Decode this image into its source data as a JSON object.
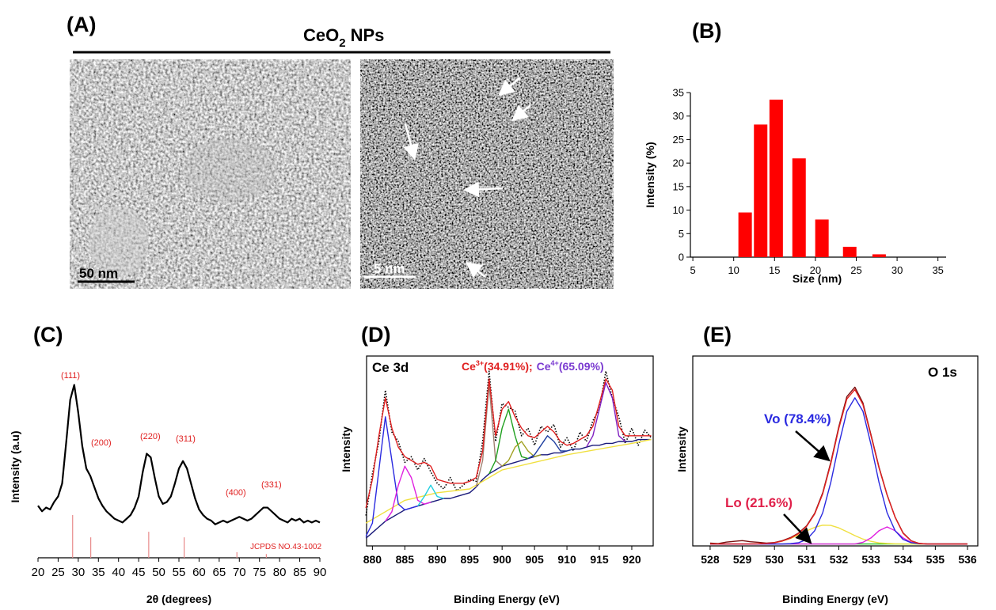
{
  "figure_a": {
    "label": "(A)",
    "title": "CeO",
    "title_subscript": "2",
    "title_suffix": "NPs",
    "scale_bar_1": "50 nm",
    "scale_bar_2": "5 nm"
  },
  "chart_data": [
    {
      "type": "bar",
      "label": "(B)",
      "xlabel": "Size (nm)",
      "ylabel": "Intensity (%)",
      "x": [
        11.4,
        13.3,
        15.2,
        18,
        20.8,
        24.2,
        27.8
      ],
      "values": [
        9.5,
        28.2,
        33.5,
        21,
        8,
        2.2,
        0.6
      ],
      "color": "#ff0000",
      "xlim": [
        4.7,
        36
      ],
      "xticks": [
        5,
        10,
        15,
        20,
        25,
        30,
        35
      ],
      "ylim": [
        0,
        35
      ],
      "yticks": [
        0,
        5,
        10,
        15,
        20,
        25,
        30,
        35
      ],
      "frame": false
    },
    {
      "type": "line",
      "label": "(C)",
      "xlabel": "2θ (degrees)",
      "ylabel": "Intensity (a.u)",
      "x": [
        20,
        21,
        22,
        23,
        24,
        25,
        26,
        27,
        28,
        29,
        30,
        31,
        32,
        33,
        34,
        35,
        36,
        37,
        38,
        39,
        40,
        41,
        42,
        43,
        44,
        45,
        46,
        47,
        48,
        49,
        50,
        51,
        52,
        53,
        54,
        55,
        56,
        57,
        58,
        59,
        60,
        61,
        62,
        63,
        64,
        65,
        66,
        67,
        68,
        69,
        70,
        71,
        72,
        73,
        74,
        75,
        76,
        77,
        78,
        79,
        80,
        81,
        82,
        83,
        84,
        85,
        86,
        87,
        88,
        89,
        90
      ],
      "series": [
        {
          "color": "#000000",
          "values": [
            28,
            25,
            27,
            26,
            30,
            33,
            40,
            62,
            85,
            93,
            78,
            60,
            48,
            44,
            38,
            32,
            28,
            25,
            23,
            21,
            20,
            19,
            21,
            23,
            27,
            33,
            46,
            56,
            54,
            43,
            33,
            29,
            30,
            33,
            40,
            48,
            52,
            48,
            40,
            32,
            26,
            23,
            21,
            20,
            18,
            19,
            20,
            19,
            20,
            21,
            22,
            21,
            20,
            21,
            23,
            25,
            27,
            27,
            25,
            23,
            21,
            20,
            19,
            21,
            20,
            21,
            19,
            20,
            19,
            20,
            19
          ]
        }
      ],
      "reference": {
        "x": [
          28.6,
          33.1,
          47.5,
          56.3,
          69.4,
          76.7
        ],
        "values": [
          23,
          11,
          14,
          11,
          3,
          2
        ],
        "color": "#e88a8a"
      },
      "peak_labels": [
        "(111)",
        "(200)",
        "(220)",
        "(311)",
        "(400)",
        "(331)"
      ],
      "reference_label": "JCPDS NO.43-1002",
      "xlim": [
        20,
        90
      ],
      "xticks": [
        20,
        25,
        30,
        35,
        40,
        45,
        50,
        55,
        60,
        65,
        70,
        75,
        80,
        85,
        90
      ],
      "ylim": [
        0,
        100
      ],
      "frame": false
    },
    {
      "type": "line",
      "label": "(D)",
      "title": "Ce 3d",
      "xlabel": "Binding Energy (eV)",
      "ylabel": "Intensity",
      "annotation": {
        "ce3_label": "Ce",
        "ce3_charge": "3+",
        "ce3_value": "(34.91%);",
        "ce4_label": "Ce",
        "ce4_charge": "4+",
        "ce4_value": "(65.09%)"
      },
      "x": [
        879,
        880,
        881,
        882,
        883,
        884,
        885,
        886,
        887,
        888,
        889,
        890,
        891,
        892,
        893,
        894,
        895,
        896,
        897,
        898,
        899,
        900,
        901,
        902,
        903,
        904,
        905,
        906,
        907,
        908,
        909,
        910,
        911,
        912,
        913,
        914,
        915,
        916,
        917,
        918,
        919,
        920,
        921,
        922,
        923
      ],
      "series": [
        {
          "color": "#000000",
          "style": "dotted",
          "values": [
            16,
            38,
            55,
            82,
            60,
            55,
            44,
            47,
            40,
            46,
            39,
            33,
            30,
            36,
            29,
            32,
            35,
            34,
            55,
            92,
            55,
            75,
            73,
            71,
            58,
            62,
            53,
            63,
            60,
            64,
            52,
            57,
            50,
            60,
            55,
            66,
            72,
            92,
            78,
            68,
            54,
            62,
            53,
            61,
            57
          ]
        },
        {
          "color": "#1a1a7a",
          "values": [
            4,
            7,
            10,
            13,
            15,
            17,
            19,
            20,
            21,
            22,
            23,
            24,
            25,
            25,
            26,
            27,
            28,
            31,
            35,
            38,
            40,
            42,
            43,
            44,
            45,
            46,
            47,
            48,
            48,
            49,
            49,
            50,
            51,
            51,
            52,
            53,
            53,
            54,
            54,
            55,
            55,
            55,
            56,
            56,
            56
          ]
        },
        {
          "color": "#f0e040",
          "x": [
            879,
            885,
            890,
            895,
            900,
            910,
            920,
            923
          ],
          "values": [
            12,
            24,
            28,
            30,
            40,
            48,
            54,
            56
          ]
        },
        {
          "color": "#2a2ae0",
          "x": [
            879,
            880,
            881,
            882,
            883,
            884,
            885,
            886,
            887
          ],
          "values": [
            5,
            12,
            40,
            68,
            45,
            22,
            19,
            20,
            21
          ]
        },
        {
          "color": "#e020e0",
          "x": [
            882,
            883,
            884,
            885,
            886,
            887,
            888,
            889
          ],
          "values": [
            13,
            18,
            32,
            42,
            36,
            24,
            22,
            23
          ]
        },
        {
          "color": "#20d0e0",
          "x": [
            887,
            888,
            889,
            890,
            891
          ],
          "values": [
            21,
            26,
            32,
            26,
            25
          ]
        },
        {
          "color": "#a08070",
          "x": [
            896,
            897,
            898,
            899,
            900
          ],
          "values": [
            31,
            45,
            85,
            45,
            42
          ]
        },
        {
          "color": "#20a020",
          "x": [
            898,
            899,
            900,
            901,
            902,
            903,
            904
          ],
          "values": [
            38,
            45,
            62,
            72,
            58,
            47,
            46
          ]
        },
        {
          "color": "#a0a020",
          "x": [
            900,
            901,
            902,
            903,
            904,
            905,
            906
          ],
          "values": [
            42,
            45,
            52,
            55,
            50,
            47,
            48
          ]
        },
        {
          "color": "#2040a0",
          "x": [
            904,
            905,
            906,
            907,
            908,
            909,
            910,
            911
          ],
          "values": [
            46,
            48,
            53,
            58,
            55,
            50,
            50,
            51
          ]
        },
        {
          "color": "#8020c0",
          "x": [
            913,
            914,
            915,
            916,
            917,
            918,
            919
          ],
          "values": [
            52,
            58,
            72,
            86,
            78,
            58,
            55
          ]
        },
        {
          "color": "#e02020",
          "values": [
            20,
            35,
            58,
            78,
            62,
            52,
            47,
            45,
            43,
            44,
            42,
            35,
            34,
            33,
            33,
            33,
            34,
            36,
            50,
            88,
            58,
            72,
            76,
            68,
            62,
            58,
            57,
            60,
            63,
            60,
            55,
            53,
            54,
            56,
            58,
            63,
            75,
            88,
            82,
            63,
            58,
            58,
            58,
            58,
            58
          ]
        }
      ],
      "xlim": [
        879.1,
        923.3
      ],
      "xticks": [
        880,
        885,
        890,
        895,
        900,
        905,
        910,
        915,
        920
      ],
      "ylim": [
        0,
        100
      ],
      "frame": true
    },
    {
      "type": "line",
      "label": "(E)",
      "title": "O 1s",
      "xlabel": "Binding Energy (eV)",
      "ylabel": "Intensity",
      "annotations": [
        "Vo (78.4%)",
        "Lo (21.6%)"
      ],
      "x": [
        528,
        528.25,
        528.5,
        528.75,
        529,
        529.25,
        529.5,
        529.75,
        530,
        530.25,
        530.5,
        530.75,
        531,
        531.25,
        531.5,
        531.75,
        532,
        532.25,
        532.5,
        532.75,
        533,
        533.25,
        533.5,
        533.75,
        534,
        534.25,
        534.5,
        534.75,
        535,
        535.25,
        535.5,
        535.75,
        536
      ],
      "series": [
        {
          "color": "#20c020",
          "values": [
            1,
            1,
            1,
            1,
            1,
            1,
            1,
            1,
            1,
            1,
            1,
            1,
            1,
            1,
            1,
            1,
            1,
            1,
            1,
            1,
            1,
            1,
            1,
            1,
            1,
            1,
            1,
            1,
            1,
            1,
            1,
            1,
            1
          ]
        },
        {
          "color": "#f0e040",
          "values": [
            1,
            1,
            1,
            1,
            1,
            1,
            1.1,
            1.3,
            1.7,
            2.6,
            3.9,
            5.8,
            7.9,
            9.8,
            10.9,
            10.8,
            9.5,
            7.5,
            5.4,
            3.6,
            2.4,
            1.6,
            1.3,
            1.1,
            1,
            1,
            1,
            1,
            1,
            1,
            1,
            1,
            1
          ]
        },
        {
          "color": "#e020e0",
          "values": [
            1,
            1,
            1,
            1,
            1,
            1,
            1,
            1,
            1,
            1,
            1,
            1,
            1,
            1,
            1,
            1,
            1,
            1,
            1,
            1.9,
            4.2,
            8,
            10,
            8,
            4.2,
            1.9,
            1.1,
            1,
            1,
            1,
            1,
            1,
            1
          ]
        },
        {
          "color": "#2a2ae0",
          "values": [
            1,
            1,
            1,
            1,
            1,
            1,
            1,
            1,
            1,
            1,
            1.2,
            1.7,
            3.4,
            8,
            17.5,
            33.4,
            53.4,
            70.9,
            78,
            70.9,
            53.4,
            33.4,
            17.5,
            8,
            3.4,
            1.7,
            1.2,
            1,
            1,
            1,
            1,
            1,
            1
          ]
        },
        {
          "color": "#7a1010",
          "values": [
            1.5,
            1.2,
            2,
            2.4,
            2.8,
            2.2,
            1.9,
            1.5,
            1.8,
            2.8,
            4.4,
            6.8,
            10.6,
            17.2,
            28,
            44,
            62.8,
            78.6,
            83.6,
            75.3,
            58.6,
            41.5,
            27,
            15.2,
            6.8,
            2.7,
            1.3,
            1,
            1,
            1,
            1,
            1,
            1
          ]
        },
        {
          "color": "#e02020",
          "values": [
            1,
            1,
            1,
            1,
            1,
            1,
            1.1,
            1.3,
            1.7,
            2.6,
            4.1,
            6.5,
            10.3,
            16.8,
            27.4,
            43.2,
            61.9,
            77.4,
            82.4,
            74.4,
            58,
            41,
            26.8,
            15.1,
            6.6,
            2.6,
            1.3,
            1,
            1,
            1,
            1,
            1,
            1
          ]
        }
      ],
      "xlim": [
        527.46,
        536.32
      ],
      "xticks": [
        528,
        529,
        530,
        531,
        532,
        533,
        534,
        535,
        536
      ],
      "ylim": [
        0,
        100
      ],
      "frame": true
    }
  ]
}
